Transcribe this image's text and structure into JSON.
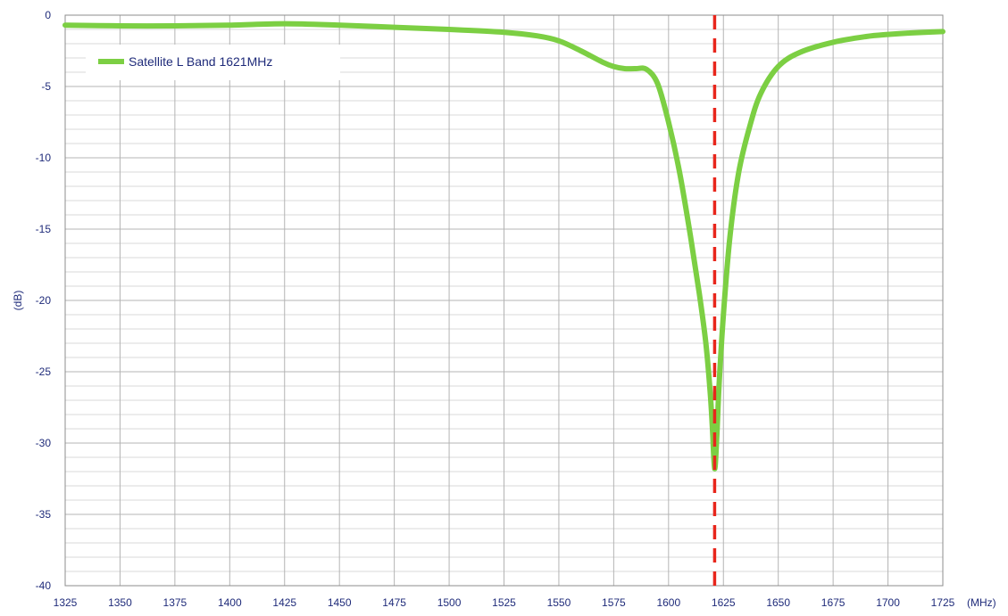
{
  "chart_data": {
    "type": "line",
    "title": "",
    "xlabel": "(MHz)",
    "ylabel": "(dB)",
    "xlim": [
      1325,
      1725
    ],
    "ylim": [
      -40,
      0
    ],
    "x_ticks": [
      1325,
      1350,
      1375,
      1400,
      1425,
      1450,
      1475,
      1500,
      1525,
      1550,
      1575,
      1600,
      1625,
      1650,
      1675,
      1700,
      1725
    ],
    "y_ticks": [
      0,
      -5,
      -10,
      -15,
      -20,
      -25,
      -30,
      -35,
      -40
    ],
    "y_minor_step": 1,
    "x_minor_step": 5,
    "grid": true,
    "legend_position": "top-left",
    "marker_line": {
      "x": 1621,
      "color": "#e8261c",
      "style": "dashed"
    },
    "series": [
      {
        "name": "Satellite L Band 1621MHz",
        "color": "#7ccf43",
        "x": [
          1325,
          1350,
          1375,
          1400,
          1425,
          1450,
          1475,
          1500,
          1525,
          1540,
          1550,
          1560,
          1570,
          1575,
          1580,
          1585,
          1590,
          1595,
          1600,
          1605,
          1610,
          1614,
          1617,
          1619,
          1620,
          1621,
          1622,
          1623,
          1625,
          1628,
          1632,
          1637,
          1642,
          1650,
          1660,
          1675,
          1690,
          1700,
          1710,
          1725
        ],
        "values": [
          -0.7,
          -0.75,
          -0.75,
          -0.7,
          -0.6,
          -0.7,
          -0.85,
          -1.0,
          -1.2,
          -1.45,
          -1.8,
          -2.5,
          -3.3,
          -3.6,
          -3.75,
          -3.75,
          -3.8,
          -4.8,
          -7.5,
          -11.0,
          -15.5,
          -19.5,
          -23.0,
          -26.5,
          -29.0,
          -31.8,
          -29.5,
          -26.0,
          -21.0,
          -15.5,
          -11.0,
          -7.8,
          -5.5,
          -3.6,
          -2.6,
          -1.9,
          -1.5,
          -1.35,
          -1.25,
          -1.15
        ]
      }
    ]
  },
  "axis_colors": {
    "tick_label": "#1f2b7a",
    "grid_major": "#b4b4b4",
    "grid_minor": "#d9d9d9",
    "frame": "#8c8c8c"
  }
}
